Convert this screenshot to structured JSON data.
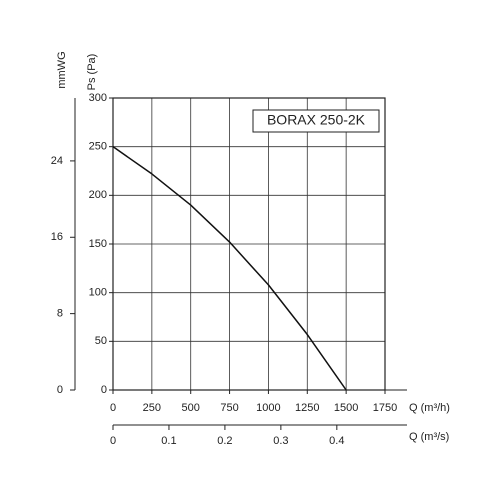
{
  "chart_data": {
    "type": "line",
    "title": "BORAX 250-2K",
    "x_label": "Q (m³/h)",
    "x2_label": "Q (m³/s)",
    "y_label": "Ps (Pa)",
    "y2_label": "mmWG",
    "x": [
      0,
      250,
      500,
      750,
      1000,
      1250,
      1500
    ],
    "series": [
      {
        "color": "#111111",
        "values": [
          250,
          222,
          190,
          152,
          108,
          57,
          0
        ]
      }
    ],
    "xlim": [
      0,
      1750
    ],
    "xticks": [
      0,
      250,
      500,
      750,
      1000,
      1250,
      1500,
      1750
    ],
    "x2lim": [
      0,
      0.4861
    ],
    "x2ticks": [
      0,
      0.1,
      0.2,
      0.3,
      0.4
    ],
    "ylim": [
      0,
      300
    ],
    "yticks": [
      0,
      50,
      100,
      150,
      200,
      250,
      300
    ],
    "y2lim": [
      0,
      30.59
    ],
    "y2ticks": [
      0,
      8,
      16,
      24
    ],
    "grid": true
  }
}
